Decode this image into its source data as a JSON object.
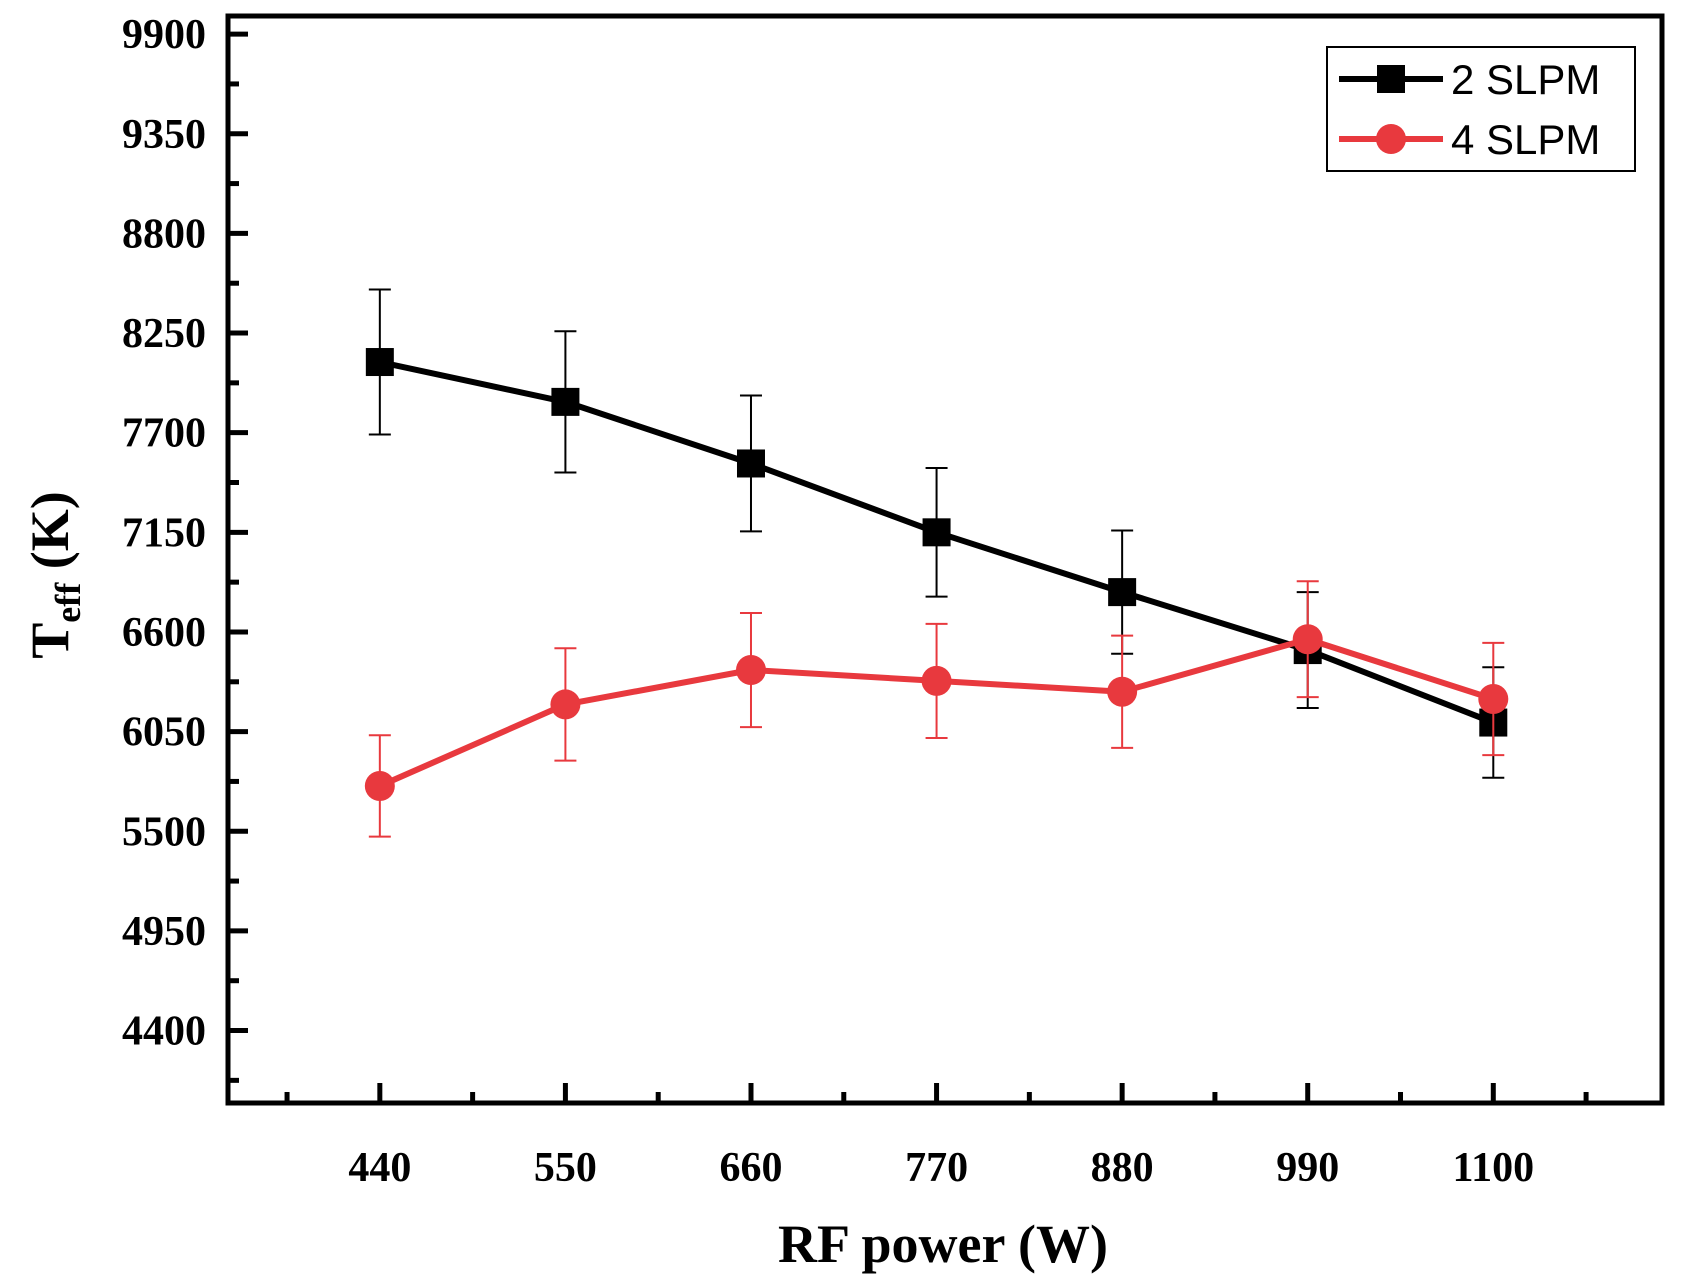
{
  "chart_data": {
    "type": "line",
    "xlabel": "RF power (W)",
    "ylabel_main": "T",
    "ylabel_sub": "eff",
    "ylabel_unit": " (K)",
    "x": [
      440,
      550,
      660,
      770,
      880,
      990,
      1100
    ],
    "xlim": [
      350,
      1200
    ],
    "ylim": [
      4000,
      10000
    ],
    "xticks": [
      440,
      550,
      660,
      770,
      880,
      990,
      1100
    ],
    "yticks": [
      4400,
      4950,
      5500,
      6050,
      6600,
      7150,
      7700,
      8250,
      8800,
      9350,
      9900
    ],
    "grid": false,
    "legend_position": "top-right",
    "series": [
      {
        "name": "2 SLPM",
        "color": "#000000",
        "marker": "square",
        "values": [
          8090,
          7870,
          7530,
          7150,
          6820,
          6500,
          6100
        ],
        "errors": [
          400,
          390,
          375,
          355,
          340,
          320,
          305
        ]
      },
      {
        "name": "4 SLPM",
        "color": "#e8393e",
        "marker": "circle",
        "values": [
          5750,
          6200,
          6390,
          6330,
          6270,
          6560,
          6230
        ],
        "errors": [
          280,
          310,
          315,
          315,
          310,
          320,
          310
        ]
      }
    ]
  }
}
